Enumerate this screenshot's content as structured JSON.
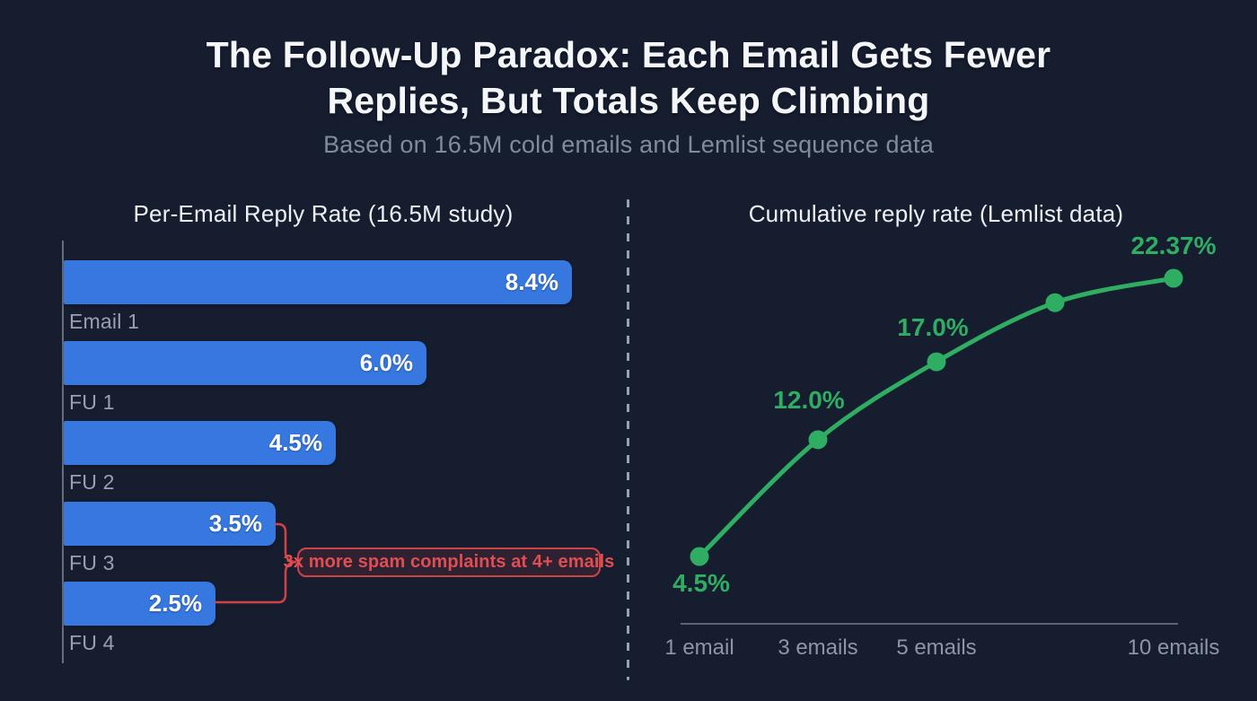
{
  "page": {
    "title_line1": "The Follow-Up Paradox: Each Email Gets Fewer",
    "title_line2": "Replies, But Totals Keep Climbing",
    "subtitle": "Based on 16.5M cold emails and Lemlist sequence data"
  },
  "colors": {
    "background": "#151d2f",
    "bar_blue": "#3678e0",
    "line_green": "#2fad62",
    "annotation_red": "#e04e52",
    "title_white": "#f4f6fa",
    "label_gray": "#98a0b1",
    "axis_gray": "#666d7f"
  },
  "chart_data": [
    {
      "type": "bar",
      "orientation": "horizontal",
      "title": "Per-Email Reply Rate (16.5M study)",
      "categories": [
        "Email 1",
        "FU 1",
        "FU 2",
        "FU 3",
        "FU 4"
      ],
      "values": [
        8.4,
        6.0,
        4.5,
        3.5,
        2.5
      ],
      "data_labels": [
        "8.4%",
        "6.0%",
        "4.5%",
        "3.5%",
        "2.5%"
      ],
      "unit": "%",
      "xlim": [
        0,
        9
      ],
      "grid": false,
      "annotation": "3x more spam complaints at 4+ emails",
      "annotation_targets": [
        "FU 3",
        "FU 4"
      ]
    },
    {
      "type": "line",
      "title": "Cumulative reply rate (Lemlist data)",
      "x": [
        1,
        3,
        5,
        7,
        10
      ],
      "x_tick_labels": [
        "1 email",
        "3 emails",
        "5 emails",
        "",
        "10 emails"
      ],
      "values": [
        4.5,
        12.0,
        17.0,
        20.8,
        22.37
      ],
      "data_labels": [
        "4.5%",
        "12.0%",
        "17.0%",
        "",
        "22.37%"
      ],
      "unit": "%",
      "grid": false,
      "legend": "none",
      "note_unlabeled_point": "fourth point shown without data label, value estimated from plot"
    }
  ]
}
